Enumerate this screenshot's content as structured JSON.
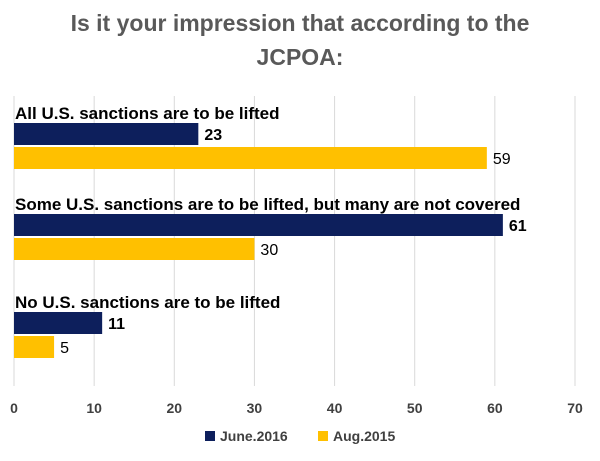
{
  "chart_data": {
    "type": "bar",
    "orientation": "horizontal",
    "title_lines": [
      "Is it your impression that according to the",
      "JCPOA:"
    ],
    "categories": [
      "All U.S. sanctions are to be lifted",
      "Some U.S. sanctions are to be lifted, but many are not covered",
      "No U.S. sanctions are to be lifted"
    ],
    "series": [
      {
        "name": "June.2016",
        "values": [
          23,
          61,
          11
        ],
        "color": "#0d1f5c"
      },
      {
        "name": "Aug.2015",
        "values": [
          59,
          30,
          5
        ],
        "color": "#ffc000"
      }
    ],
    "xlim": [
      0,
      70
    ],
    "xticks": [
      0,
      10,
      20,
      30,
      40,
      50,
      60,
      70
    ],
    "gridlines": true,
    "legend_position": "bottom"
  }
}
